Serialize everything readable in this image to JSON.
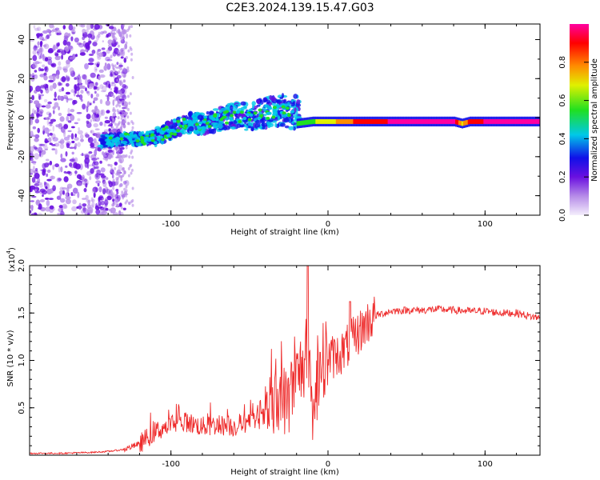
{
  "title": "C2E3.2024.139.15.47.G03",
  "colors": {
    "axis": "#000000",
    "snr_line": "#ee2a2a",
    "colormap": [
      "#f4eefc",
      "#b68be8",
      "#6a10e0",
      "#1010e8",
      "#00c8e8",
      "#20e020",
      "#e0f000",
      "#ff8c00",
      "#ff0000",
      "#ff00a0"
    ]
  },
  "chart_data": [
    {
      "type": "heatmap",
      "name_hint": "spectrogram",
      "xlabel": "Height of straight line (km)",
      "ylabel": "Frequency (Hz)",
      "xlim": [
        -190,
        135
      ],
      "ylim": [
        -50,
        48
      ],
      "x_ticks": [
        -100,
        0,
        100
      ],
      "y_ticks": [
        -40,
        -20,
        0,
        20,
        40
      ],
      "colorbar": {
        "label": "Normalized spectral amplitude",
        "range": [
          0,
          1
        ],
        "ticks": [
          "0.0",
          "0.2",
          "0.4",
          "0.6",
          "0.8"
        ],
        "tick_values": [
          0.0,
          0.2,
          0.4,
          0.6,
          0.8
        ]
      },
      "signal_track": {
        "x": [
          -150,
          -140,
          -130,
          -120,
          -110,
          -100,
          -90,
          -80,
          -70,
          -60,
          -50,
          -40,
          -30,
          -20,
          -10,
          0,
          10,
          20,
          40,
          60,
          80,
          85,
          90,
          100,
          120,
          135
        ],
        "freq": [
          -12,
          -12,
          -11,
          -11,
          -10,
          -7,
          -4,
          -5,
          -3,
          -2,
          -3,
          -2,
          -1,
          -3,
          -2,
          -2,
          -2,
          -2,
          -2,
          -2,
          -2,
          -3,
          -2,
          -2,
          -2,
          -2
        ],
        "amplitude": [
          0.35,
          0.35,
          0.4,
          0.42,
          0.4,
          0.45,
          0.42,
          0.35,
          0.4,
          0.38,
          0.36,
          0.35,
          0.4,
          0.6,
          0.6,
          0.7,
          0.75,
          0.9,
          0.95,
          0.95,
          0.95,
          0.7,
          0.9,
          0.95,
          0.95,
          0.95
        ]
      }
    },
    {
      "type": "line",
      "xlabel": "Height of straight line (km)",
      "ylabel": "SNR (10 * v/v)",
      "y_multiplier": "(x10",
      "y_multiplier_exp": "4",
      "xlim": [
        -190,
        135
      ],
      "ylim": [
        0,
        2.0
      ],
      "x_ticks": [
        -100,
        0,
        100
      ],
      "y_ticks": [
        0.5,
        1.0,
        1.5,
        2.0
      ],
      "y_tick_labels": [
        "0.5",
        "1.0",
        "1.5",
        "2.0"
      ],
      "series": [
        {
          "x": [
            -190,
            -170,
            -150,
            -140,
            -130,
            -120,
            -110,
            -100,
            -90,
            -80,
            -70,
            -60,
            -50,
            -40,
            -30,
            -25,
            -20,
            -15,
            -10,
            -5,
            0,
            5,
            10,
            15,
            20,
            25,
            30,
            40,
            50,
            60,
            70,
            80,
            90,
            100,
            110,
            120,
            130,
            135
          ],
          "y": [
            0.02,
            0.02,
            0.03,
            0.04,
            0.06,
            0.12,
            0.25,
            0.32,
            0.35,
            0.3,
            0.32,
            0.3,
            0.35,
            0.4,
            0.55,
            0.6,
            0.8,
            1.0,
            0.3,
            1.0,
            1.02,
            1.05,
            1.1,
            1.2,
            1.3,
            1.4,
            1.47,
            1.52,
            1.53,
            1.53,
            1.54,
            1.53,
            1.52,
            1.52,
            1.5,
            1.5,
            1.46,
            1.45
          ]
        }
      ]
    }
  ]
}
